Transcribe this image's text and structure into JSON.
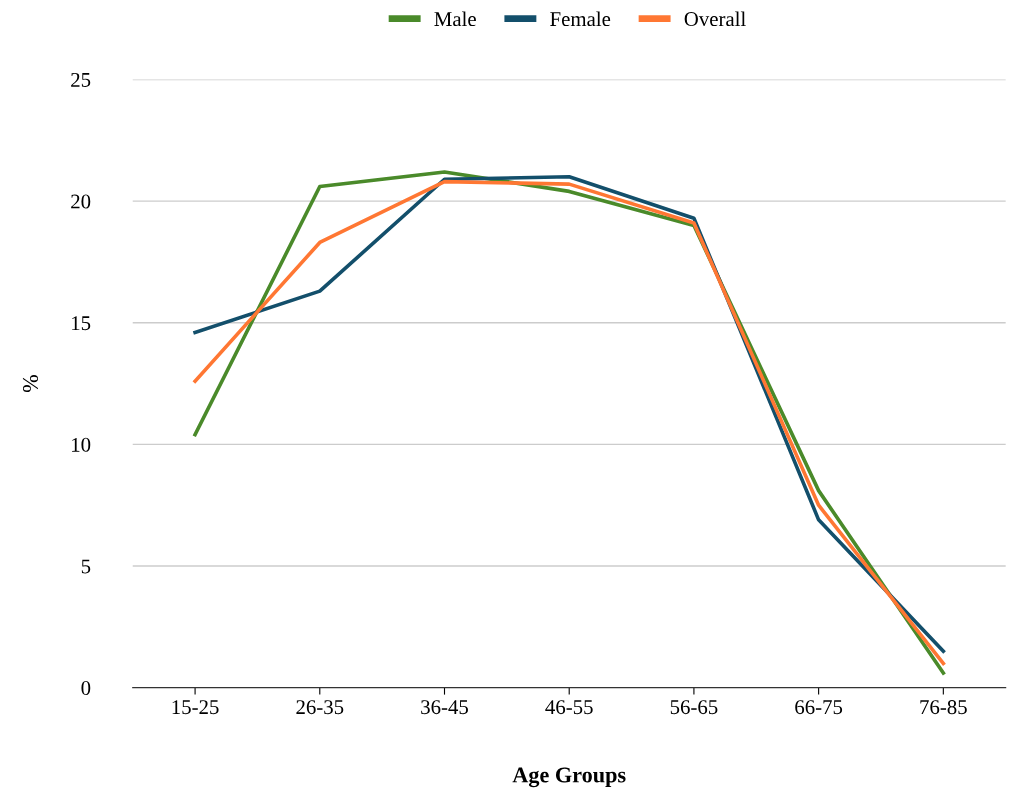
{
  "chart_data": {
    "type": "line",
    "xlabel": "Age Groups",
    "ylabel": "%",
    "categories": [
      "15-25",
      "26-35",
      "36-45",
      "46-55",
      "56-65",
      "66-75",
      "76-85"
    ],
    "series": [
      {
        "name": "Male",
        "color": "#4a8a2a",
        "values": [
          10.4,
          20.6,
          21.2,
          20.4,
          19.0,
          8.1,
          0.6
        ]
      },
      {
        "name": "Female",
        "color": "#134f6b",
        "values": [
          14.6,
          16.3,
          20.9,
          21.0,
          19.3,
          6.9,
          1.5
        ]
      },
      {
        "name": "Overall",
        "color": "#ff7733",
        "values": [
          12.6,
          18.3,
          20.8,
          20.7,
          19.1,
          7.5,
          1.0
        ]
      }
    ],
    "ylim": [
      0,
      25
    ],
    "yticks": [
      0,
      5,
      10,
      15,
      20,
      25
    ],
    "grid": "y",
    "legend": "top",
    "marker": "none",
    "line_style": "solid"
  }
}
